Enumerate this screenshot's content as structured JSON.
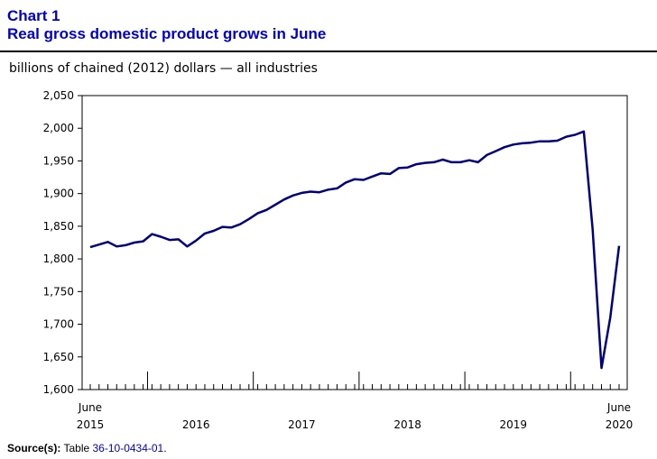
{
  "header": {
    "chart_number": "Chart 1",
    "title": "Real gross domestic product grows in June"
  },
  "source": {
    "label": "Source(s):",
    "prefix": "Table",
    "table_id": "36-10-0434-01",
    "suffix": "."
  },
  "colors": {
    "title": "#0000cc",
    "series": "#00007f",
    "axis": "#000000"
  },
  "chart_data": {
    "type": "line",
    "title": "Real gross domestic product grows in June",
    "ylabel": "billions of chained (2012) dollars — all industries",
    "xlabel": "",
    "ylim": [
      1600,
      2050
    ],
    "yticks": [
      1600,
      1650,
      1700,
      1750,
      1800,
      1850,
      1900,
      1950,
      2000,
      2050
    ],
    "ytick_labels": [
      "1,600",
      "1,650",
      "1,700",
      "1,750",
      "1,800",
      "1,850",
      "1,900",
      "1,950",
      "2,000",
      "2,050"
    ],
    "month_labels": [
      {
        "index": 0,
        "text": "June"
      },
      {
        "index": 60,
        "text": "June"
      }
    ],
    "year_labels": [
      {
        "index": 0,
        "text": "2015"
      },
      {
        "index": 12,
        "text": "2016"
      },
      {
        "index": 24,
        "text": "2017"
      },
      {
        "index": 36,
        "text": "2018"
      },
      {
        "index": 48,
        "text": "2019"
      },
      {
        "index": 60,
        "text": "2020"
      }
    ],
    "year_boundaries": [
      6.5,
      18.5,
      30.5,
      42.5,
      54.5
    ],
    "grid": false,
    "series": [
      {
        "name": "All industries",
        "x_start": "June 2015",
        "x_end": "June 2020",
        "values": [
          1818,
          1822,
          1826,
          1819,
          1821,
          1825,
          1827,
          1838,
          1834,
          1829,
          1830,
          1819,
          1828,
          1839,
          1843,
          1849,
          1848,
          1853,
          1861,
          1870,
          1875,
          1883,
          1891,
          1897,
          1901,
          1903,
          1902,
          1906,
          1908,
          1917,
          1922,
          1921,
          1926,
          1931,
          1930,
          1939,
          1940,
          1945,
          1947,
          1948,
          1952,
          1948,
          1948,
          1951,
          1948,
          1959,
          1965,
          1971,
          1975,
          1977,
          1978,
          1980,
          1980,
          1981,
          1987,
          1990,
          1995,
          1845,
          1633,
          1710,
          1820
        ]
      }
    ]
  }
}
